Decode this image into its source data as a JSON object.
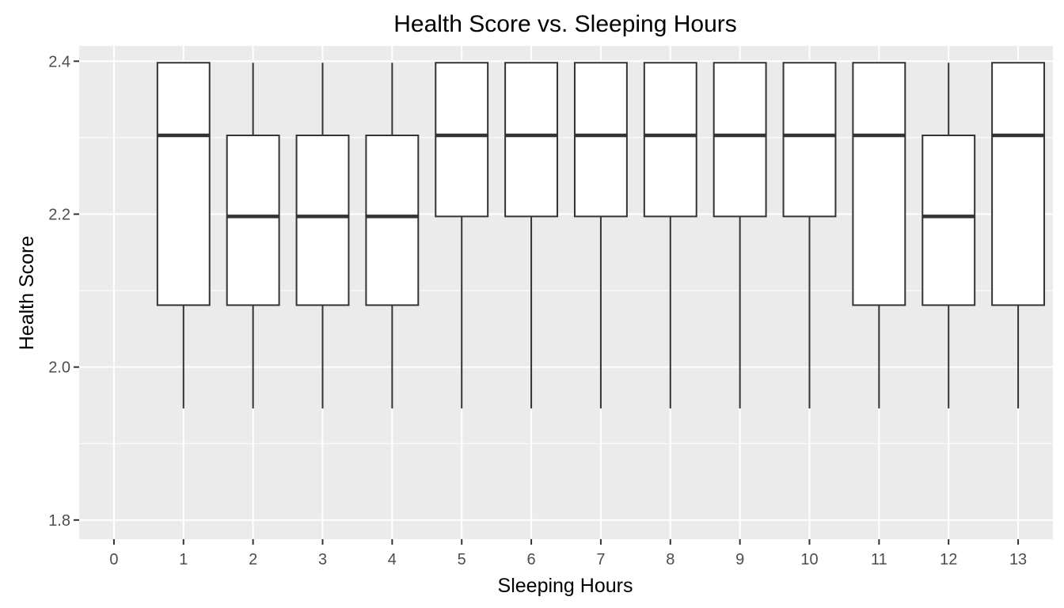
{
  "chart_data": {
    "type": "boxplot",
    "title": "Health Score vs. Sleeping Hours",
    "xlabel": "Sleeping Hours",
    "ylabel": "Health Score",
    "categories": [
      "0",
      "1",
      "2",
      "3",
      "4",
      "5",
      "6",
      "7",
      "8",
      "9",
      "10",
      "11",
      "12",
      "13"
    ],
    "x_ticks": [
      "0",
      "1",
      "2",
      "3",
      "4",
      "5",
      "6",
      "7",
      "8",
      "9",
      "10",
      "11",
      "12",
      "13"
    ],
    "y_ticks": [
      1.8,
      2.0,
      2.2,
      2.4
    ],
    "y_tick_labels": [
      "1.8",
      "2.0",
      "2.2",
      "2.4"
    ],
    "ylim": [
      1.775,
      2.42
    ],
    "grid": true,
    "legend": "none",
    "boxes": [
      {
        "category": "1",
        "whisker_low": 1.946,
        "q1": 2.081,
        "median": 2.303,
        "q3": 2.398,
        "whisker_high": 2.398
      },
      {
        "category": "2",
        "whisker_low": 1.946,
        "q1": 2.081,
        "median": 2.197,
        "q3": 2.303,
        "whisker_high": 2.398
      },
      {
        "category": "3",
        "whisker_low": 1.946,
        "q1": 2.081,
        "median": 2.197,
        "q3": 2.303,
        "whisker_high": 2.398
      },
      {
        "category": "4",
        "whisker_low": 1.946,
        "q1": 2.081,
        "median": 2.197,
        "q3": 2.303,
        "whisker_high": 2.398
      },
      {
        "category": "5",
        "whisker_low": 1.946,
        "q1": 2.197,
        "median": 2.303,
        "q3": 2.398,
        "whisker_high": 2.398
      },
      {
        "category": "6",
        "whisker_low": 1.946,
        "q1": 2.197,
        "median": 2.303,
        "q3": 2.398,
        "whisker_high": 2.398
      },
      {
        "category": "7",
        "whisker_low": 1.946,
        "q1": 2.197,
        "median": 2.303,
        "q3": 2.398,
        "whisker_high": 2.398
      },
      {
        "category": "8",
        "whisker_low": 1.946,
        "q1": 2.197,
        "median": 2.303,
        "q3": 2.398,
        "whisker_high": 2.398
      },
      {
        "category": "9",
        "whisker_low": 1.946,
        "q1": 2.197,
        "median": 2.303,
        "q3": 2.398,
        "whisker_high": 2.398
      },
      {
        "category": "10",
        "whisker_low": 1.946,
        "q1": 2.197,
        "median": 2.303,
        "q3": 2.398,
        "whisker_high": 2.398
      },
      {
        "category": "11",
        "whisker_low": 1.946,
        "q1": 2.081,
        "median": 2.303,
        "q3": 2.398,
        "whisker_high": 2.398
      },
      {
        "category": "12",
        "whisker_low": 1.946,
        "q1": 2.081,
        "median": 2.197,
        "q3": 2.303,
        "whisker_high": 2.398
      },
      {
        "category": "13",
        "whisker_low": 1.946,
        "q1": 2.081,
        "median": 2.303,
        "q3": 2.398,
        "whisker_high": 2.398
      }
    ],
    "colors": {
      "panel_background": "#ebebeb",
      "grid_major": "#ffffff",
      "box_fill": "#ffffff",
      "box_line": "#333333",
      "tick_color": "#333333",
      "tick_label": "#4d4d4d"
    }
  }
}
